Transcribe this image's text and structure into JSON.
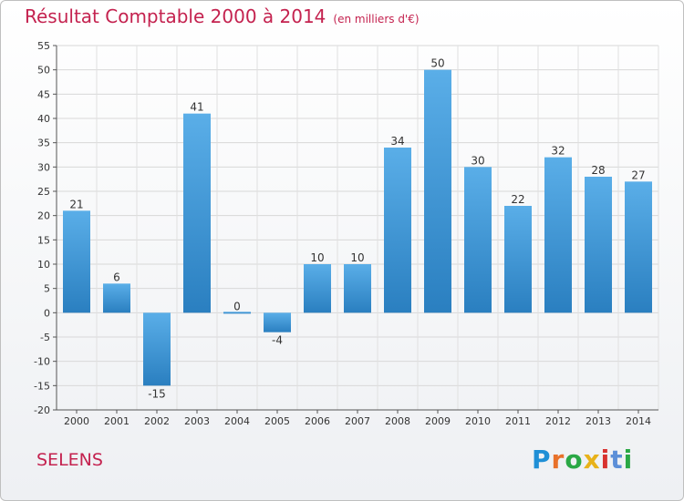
{
  "header": {
    "title": "Résultat Comptable 2000 à 2014",
    "subtitle": "(en milliers d'€)"
  },
  "footer": {
    "place": "SELENS",
    "logo": [
      "P",
      "r",
      "o",
      "x",
      "i",
      "t",
      "i"
    ]
  },
  "colors": {
    "title": "#c4224f",
    "bar_top": "#5aaee8",
    "bar_bottom": "#2a7fc0"
  },
  "chart_data": {
    "type": "bar",
    "title": "Résultat Comptable 2000 à 2014",
    "xlabel": "",
    "ylabel": "",
    "ylim": [
      -20,
      55
    ],
    "yticks": [
      -20,
      -15,
      -10,
      -5,
      0,
      5,
      10,
      15,
      20,
      25,
      30,
      35,
      40,
      45,
      50,
      55
    ],
    "grid": true,
    "categories": [
      "2000",
      "2001",
      "2002",
      "2003",
      "2004",
      "2005",
      "2006",
      "2007",
      "2008",
      "2009",
      "2010",
      "2011",
      "2012",
      "2013",
      "2014"
    ],
    "values": [
      21,
      6,
      -15,
      41,
      0,
      -4,
      10,
      10,
      34,
      50,
      30,
      22,
      32,
      28,
      27
    ]
  }
}
